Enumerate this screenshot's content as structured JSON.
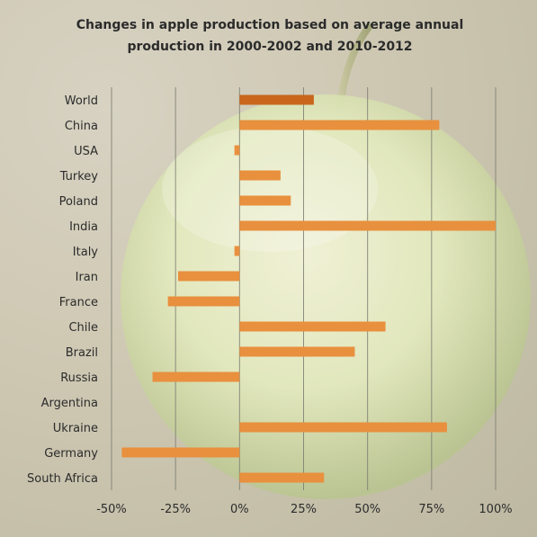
{
  "chart_data": {
    "type": "bar",
    "orientation": "horizontal",
    "title_lines": [
      "Changes in apple production based on average annual",
      "production in 2000-2002 and 2010-2012"
    ],
    "categories": [
      "World",
      "China",
      "USA",
      "Turkey",
      "Poland",
      "India",
      "Italy",
      "Iran",
      "France",
      "Chile",
      "Brazil",
      "Russia",
      "Argentina",
      "Ukraine",
      "Germany",
      "South Africa"
    ],
    "values": [
      29,
      78,
      -2,
      16,
      20,
      100,
      -2,
      -24,
      -28,
      57,
      45,
      -34,
      0,
      81,
      -46,
      33
    ],
    "xlim": [
      -50,
      100
    ],
    "xticks": [
      -50,
      -25,
      0,
      25,
      50,
      75,
      100
    ],
    "xtick_labels": [
      "-50%",
      "-25%",
      "0%",
      "25%",
      "50%",
      "75%",
      "100%"
    ],
    "grid": true,
    "colors": {
      "bar": "#e8903e",
      "bar_highlight": "#c8661c",
      "gridline": "#7d7d72",
      "text": "#2b2b2b"
    }
  }
}
